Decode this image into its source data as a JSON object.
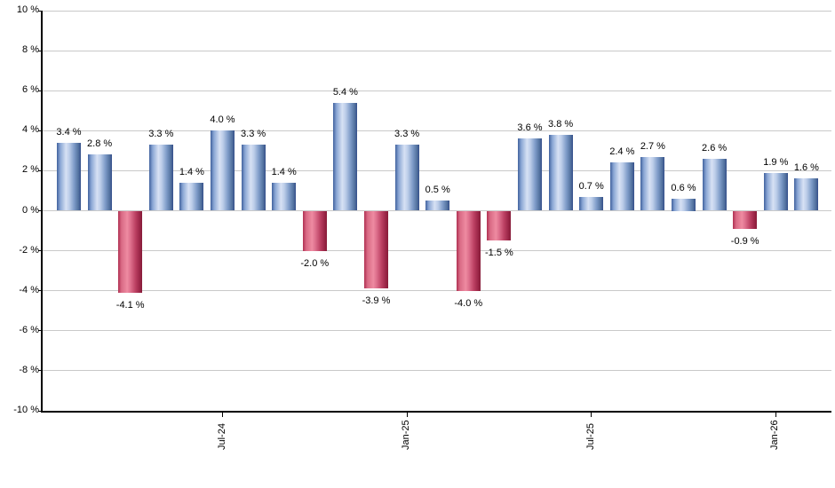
{
  "chart_data": {
    "type": "bar",
    "title": "",
    "xlabel": "",
    "ylabel": "",
    "grid": true,
    "legend": "none",
    "bars": [
      {
        "value": 3.4,
        "label": "3.4 %"
      },
      {
        "value": 2.8,
        "label": "2.8 %"
      },
      {
        "value": -4.1,
        "label": "-4.1 %"
      },
      {
        "value": 3.3,
        "label": "3.3 %"
      },
      {
        "value": 1.4,
        "label": "1.4 %"
      },
      {
        "value": 4.0,
        "label": "4.0 %"
      },
      {
        "value": 3.3,
        "label": "3.3 %"
      },
      {
        "value": 1.4,
        "label": "1.4 %"
      },
      {
        "value": -2.0,
        "label": "-2.0 %"
      },
      {
        "value": 5.4,
        "label": "5.4 %"
      },
      {
        "value": -3.9,
        "label": "-3.9 %"
      },
      {
        "value": 3.3,
        "label": "3.3 %"
      },
      {
        "value": 0.5,
        "label": "0.5 %"
      },
      {
        "value": -4.0,
        "label": "-4.0 %"
      },
      {
        "value": -1.5,
        "label": "-1.5 %"
      },
      {
        "value": 3.6,
        "label": "3.6 %"
      },
      {
        "value": 3.8,
        "label": "3.8 %"
      },
      {
        "value": 0.7,
        "label": "0.7 %"
      },
      {
        "value": 2.4,
        "label": "2.4 %"
      },
      {
        "value": 2.7,
        "label": "2.7 %"
      },
      {
        "value": 0.6,
        "label": "0.6 %"
      },
      {
        "value": 2.6,
        "label": "2.6 %"
      },
      {
        "value": -0.9,
        "label": "-0.9 %"
      },
      {
        "value": 1.9,
        "label": "1.9 %"
      },
      {
        "value": 1.6,
        "label": "1.6 %"
      }
    ],
    "x_ticks": [
      {
        "label": "Jul-24",
        "bar_index": 5
      },
      {
        "label": "Jan-25",
        "bar_index": 11
      },
      {
        "label": "Jul-25",
        "bar_index": 17
      },
      {
        "label": "Jan-26",
        "bar_index": 23
      }
    ],
    "y_axis": {
      "min": -10,
      "max": 10,
      "step": 2,
      "ticks": [
        {
          "value": 10,
          "label": "10 %"
        },
        {
          "value": 8,
          "label": "8 %"
        },
        {
          "value": 6,
          "label": "6 %"
        },
        {
          "value": 4,
          "label": "4 %"
        },
        {
          "value": 2,
          "label": "2 %"
        },
        {
          "value": 0,
          "label": "0 %"
        },
        {
          "value": -2,
          "label": "-2 %"
        },
        {
          "value": -4,
          "label": "-4 %"
        },
        {
          "value": -6,
          "label": "-6 %"
        },
        {
          "value": -8,
          "label": "-8 %"
        },
        {
          "value": -10,
          "label": "-10 %"
        }
      ]
    },
    "colors": {
      "positive_bar_edge": "#35508f",
      "positive_bar_highlight": "#d7e1f4",
      "negative_bar_edge": "#871d3a",
      "negative_bar_highlight": "#ee8ba1",
      "gridline": "#c9c9c9",
      "axis": "#000000",
      "background": "#ffffff",
      "label_text": "#000000"
    }
  }
}
